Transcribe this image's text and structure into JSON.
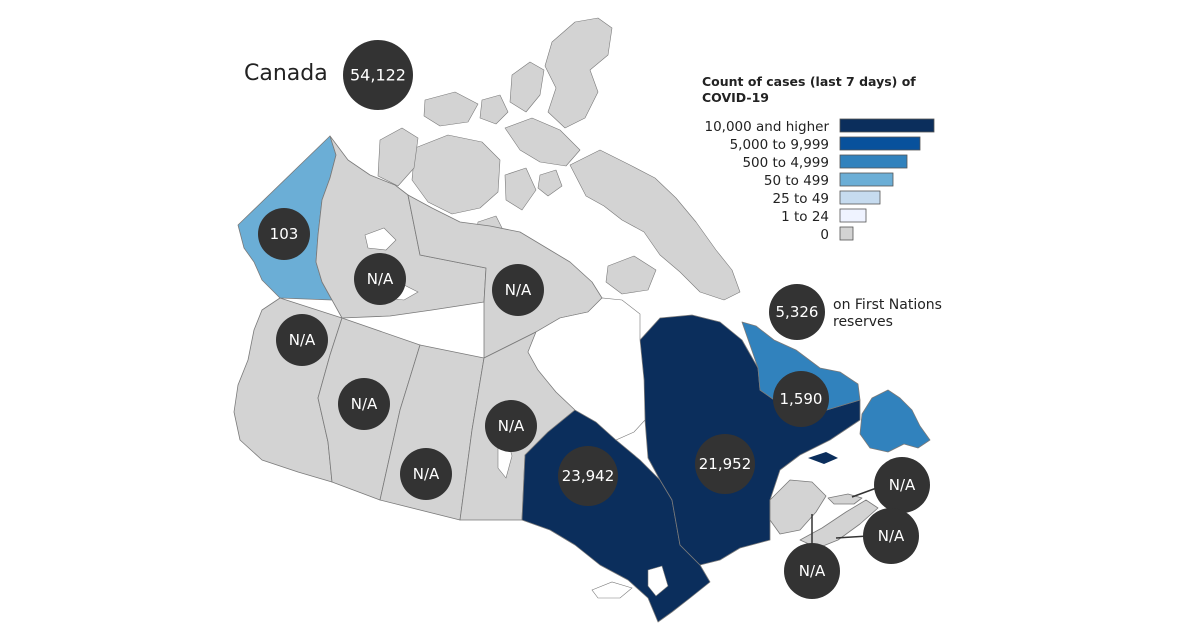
{
  "country": {
    "name": "Canada",
    "total": "54,122"
  },
  "legend": {
    "title_line1": "Count of cases (last 7 days) of",
    "title_line2": "COVID-19",
    "items": [
      {
        "label": "10,000 and higher",
        "color": "#0b2e5c"
      },
      {
        "label": "5,000 to 9,999",
        "color": "#08519c"
      },
      {
        "label": "500 to 4,999",
        "color": "#3182bd"
      },
      {
        "label": "50 to 499",
        "color": "#6baed6"
      },
      {
        "label": "25 to 49",
        "color": "#c6dbef"
      },
      {
        "label": "1 to 24",
        "color": "#eff3ff"
      },
      {
        "label": "0",
        "color": "#d3d3d3"
      }
    ]
  },
  "first_nations": {
    "value": "5,326",
    "label_line1": "on First Nations",
    "label_line2": "reserves"
  },
  "regions": [
    {
      "name": "Yukon",
      "value": "103",
      "color": "#6baed6"
    },
    {
      "name": "Northwest Territories",
      "value": "N/A",
      "color": "#d3d3d3"
    },
    {
      "name": "Nunavut",
      "value": "N/A",
      "color": "#d3d3d3"
    },
    {
      "name": "British Columbia",
      "value": "N/A",
      "color": "#d3d3d3"
    },
    {
      "name": "Alberta",
      "value": "N/A",
      "color": "#d3d3d3"
    },
    {
      "name": "Saskatchewan",
      "value": "N/A",
      "color": "#d3d3d3"
    },
    {
      "name": "Manitoba",
      "value": "N/A",
      "color": "#d3d3d3"
    },
    {
      "name": "Ontario",
      "value": "23,942",
      "color": "#0b2e5c"
    },
    {
      "name": "Quebec",
      "value": "21,952",
      "color": "#0b2e5c"
    },
    {
      "name": "Newfoundland and Labrador",
      "value": "1,590",
      "color": "#3182bd"
    },
    {
      "name": "Prince Edward Island",
      "value": "N/A",
      "color": "#d3d3d3"
    },
    {
      "name": "Nova Scotia",
      "value": "N/A",
      "color": "#d3d3d3"
    },
    {
      "name": "New Brunswick",
      "value": "N/A",
      "color": "#d3d3d3"
    }
  ]
}
